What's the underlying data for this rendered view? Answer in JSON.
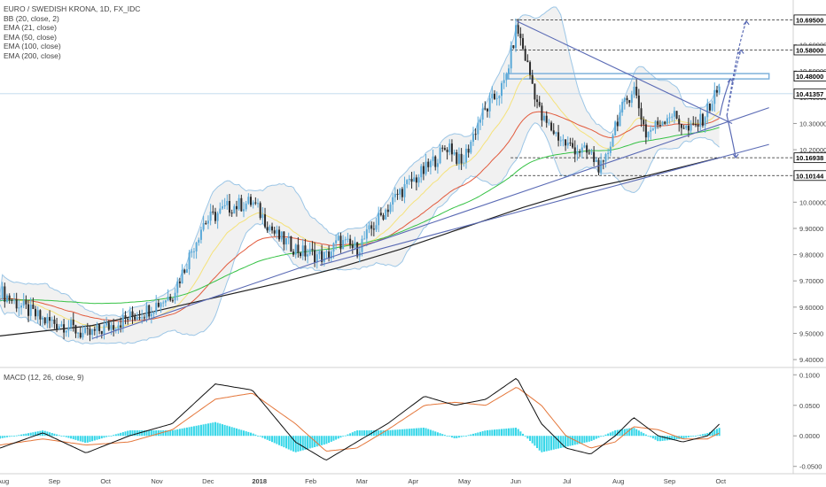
{
  "legend": {
    "title": "EURO / SWEDISH KRONA, 1D, FX_IDC",
    "indicators": [
      "BB (20, close, 2)",
      "EMA (21, close)",
      "EMA (50, close)",
      "EMA (100, close)",
      "EMA (200, close)"
    ],
    "macd": "MACD (12, 26, close, 9)"
  },
  "colors": {
    "candle": "#5aa9d8",
    "candle_dark": "#2b2b2b",
    "bb_line": "#9cc6e6",
    "bb_fill": "#e6e6e6",
    "ema21": "#f5e27a",
    "ema50": "#e25a3c",
    "ema100": "#36c245",
    "ema200": "#222222",
    "trend": "#5b6bb5",
    "macd_line": "#111111",
    "signal_line": "#e4763a",
    "hist": "#35d6e8",
    "level_box": "#7fb2dc"
  },
  "chart_data": [
    {
      "type": "line",
      "title": "EURO / SWEDISH KRONA, 1D, FX_IDC",
      "x_labels": [
        "Aug",
        "Sep",
        "Oct",
        "Nov",
        "Dec",
        "2018",
        "Feb",
        "Mar",
        "Apr",
        "May",
        "Jun",
        "Jul",
        "Aug",
        "Sep",
        "Oct"
      ],
      "y_ticks": [
        9.4,
        9.5,
        9.6,
        9.7,
        9.8,
        9.9,
        10.0,
        10.1,
        10.2,
        10.3,
        10.4,
        10.5,
        10.6
      ],
      "ylim": [
        9.37,
        10.72
      ],
      "levels": [
        {
          "value": 10.695,
          "label": "10.69500",
          "style": "dashed"
        },
        {
          "value": 10.58,
          "label": "10.58000",
          "style": "dashed"
        },
        {
          "value": 10.48,
          "label": "10.48000",
          "style": "box"
        },
        {
          "value": 10.41357,
          "label": "10.41357",
          "style": "current"
        },
        {
          "value": 10.16938,
          "label": "10.16938",
          "style": "dashed"
        },
        {
          "value": 10.10144,
          "label": "10.10144",
          "style": "dashed"
        }
      ],
      "price_path": [
        [
          2017.55,
          9.66
        ],
        [
          2017.58,
          9.61
        ],
        [
          2017.62,
          9.55
        ],
        [
          2017.66,
          9.53
        ],
        [
          2017.69,
          9.49
        ],
        [
          2017.72,
          9.52
        ],
        [
          2017.76,
          9.56
        ],
        [
          2017.79,
          9.59
        ],
        [
          2017.83,
          9.65
        ],
        [
          2017.85,
          9.75
        ],
        [
          2017.88,
          9.92
        ],
        [
          2017.92,
          9.98
        ],
        [
          2017.96,
          10.0
        ],
        [
          2018.0,
          9.87
        ],
        [
          2018.04,
          9.81
        ],
        [
          2018.08,
          9.79
        ],
        [
          2018.1,
          9.85
        ],
        [
          2018.13,
          9.82
        ],
        [
          2018.17,
          9.95
        ],
        [
          2018.2,
          10.04
        ],
        [
          2018.24,
          10.12
        ],
        [
          2018.28,
          10.22
        ],
        [
          2018.3,
          10.14
        ],
        [
          2018.33,
          10.32
        ],
        [
          2018.37,
          10.45
        ],
        [
          2018.39,
          10.67
        ],
        [
          2018.41,
          10.5
        ],
        [
          2018.43,
          10.32
        ],
        [
          2018.47,
          10.22
        ],
        [
          2018.51,
          10.18
        ],
        [
          2018.53,
          10.12
        ],
        [
          2018.55,
          10.3
        ],
        [
          2018.58,
          10.44
        ],
        [
          2018.6,
          10.26
        ],
        [
          2018.64,
          10.34
        ],
        [
          2018.67,
          10.27
        ],
        [
          2018.69,
          10.31
        ],
        [
          2018.72,
          10.44
        ]
      ],
      "ema200_path": [
        [
          2017.55,
          9.49
        ],
        [
          2017.7,
          9.53
        ],
        [
          2017.85,
          9.61
        ],
        [
          2018.0,
          9.69
        ],
        [
          2018.1,
          9.75
        ],
        [
          2018.2,
          9.82
        ],
        [
          2018.3,
          9.9
        ],
        [
          2018.4,
          9.98
        ],
        [
          2018.5,
          10.05
        ],
        [
          2018.6,
          10.1
        ],
        [
          2018.72,
          10.17
        ]
      ],
      "trendlines": [
        {
          "from": [
            2017.7,
            9.48
          ],
          "to": [
            2018.8,
            10.36
          ],
          "label": ""
        },
        {
          "from": [
            2018.07,
            9.76
          ],
          "to": [
            2018.8,
            10.22
          ],
          "label": ""
        },
        {
          "from": [
            2018.39,
            10.69
          ],
          "to": [
            2018.74,
            10.3
          ],
          "label": ""
        }
      ],
      "projections": [
        "up",
        "up",
        "up",
        "down"
      ]
    },
    {
      "type": "bar",
      "title": "MACD (12, 26, close, 9)",
      "y_ticks": [
        -0.05,
        0.0,
        0.05,
        0.1
      ],
      "y_tick_labels": [
        "-0.0500",
        "0.0000",
        "0.0500",
        "0.1000"
      ],
      "ylim": [
        -0.062,
        0.112
      ],
      "series": [
        {
          "name": "MACD",
          "values_path": [
            [
              2017.55,
              -0.02
            ],
            [
              2017.62,
              0.005
            ],
            [
              2017.69,
              -0.028
            ],
            [
              2017.76,
              0.0
            ],
            [
              2017.83,
              0.02
            ],
            [
              2017.9,
              0.085
            ],
            [
              2017.96,
              0.075
            ],
            [
              2018.03,
              -0.01
            ],
            [
              2018.08,
              -0.04
            ],
            [
              2018.13,
              -0.01
            ],
            [
              2018.18,
              0.02
            ],
            [
              2018.24,
              0.065
            ],
            [
              2018.29,
              0.05
            ],
            [
              2018.34,
              0.06
            ],
            [
              2018.39,
              0.095
            ],
            [
              2018.43,
              0.02
            ],
            [
              2018.47,
              -0.02
            ],
            [
              2018.51,
              -0.03
            ],
            [
              2018.55,
              0.0
            ],
            [
              2018.58,
              0.03
            ],
            [
              2018.62,
              0.0
            ],
            [
              2018.66,
              -0.01
            ],
            [
              2018.7,
              0.0
            ],
            [
              2018.72,
              0.02
            ]
          ]
        },
        {
          "name": "Signal",
          "values_path": [
            [
              2017.55,
              -0.015
            ],
            [
              2017.62,
              -0.005
            ],
            [
              2017.69,
              -0.015
            ],
            [
              2017.76,
              -0.01
            ],
            [
              2017.83,
              0.01
            ],
            [
              2017.9,
              0.06
            ],
            [
              2017.96,
              0.07
            ],
            [
              2018.03,
              0.02
            ],
            [
              2018.08,
              -0.025
            ],
            [
              2018.13,
              -0.02
            ],
            [
              2018.18,
              0.01
            ],
            [
              2018.24,
              0.05
            ],
            [
              2018.29,
              0.055
            ],
            [
              2018.34,
              0.05
            ],
            [
              2018.39,
              0.08
            ],
            [
              2018.43,
              0.05
            ],
            [
              2018.47,
              0.0
            ],
            [
              2018.51,
              -0.02
            ],
            [
              2018.55,
              -0.01
            ],
            [
              2018.58,
              0.015
            ],
            [
              2018.62,
              0.01
            ],
            [
              2018.66,
              -0.005
            ],
            [
              2018.7,
              -0.005
            ],
            [
              2018.72,
              0.005
            ]
          ]
        }
      ]
    }
  ]
}
